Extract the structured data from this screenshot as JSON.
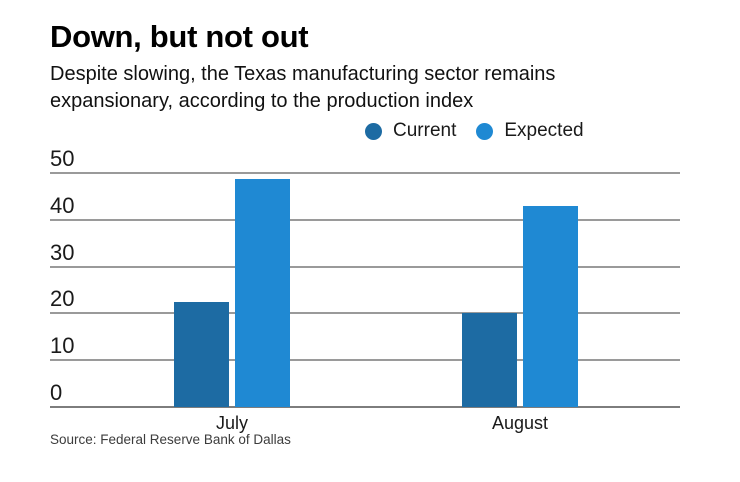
{
  "header": {
    "title": "Down, but not out",
    "subtitle_lines": [
      "Despite slowing, the Texas manufacturing sector remains",
      "expansionary, according to the production index"
    ]
  },
  "source": "Source: Federal Reserve Bank of Dallas",
  "chart_data": {
    "type": "bar",
    "title": "Down, but not out",
    "subtitle": "Despite slowing, the Texas manufacturing sector remains expansionary, according to the production index",
    "categories": [
      "July",
      "August"
    ],
    "series": [
      {
        "name": "Current",
        "color": "#1d6ba3",
        "values": [
          22.5,
          20.1
        ]
      },
      {
        "name": "Expected",
        "color": "#1f89d3",
        "values": [
          48.7,
          42.9
        ]
      }
    ],
    "xlabel": "",
    "ylabel": "",
    "ylim": [
      0,
      50
    ],
    "yticks": [
      0,
      10,
      20,
      30,
      40,
      50
    ],
    "grid": true,
    "gridline_color": "#9a9a9a",
    "legend_position": "top",
    "source": "Source: Federal Reserve Bank of Dallas"
  }
}
